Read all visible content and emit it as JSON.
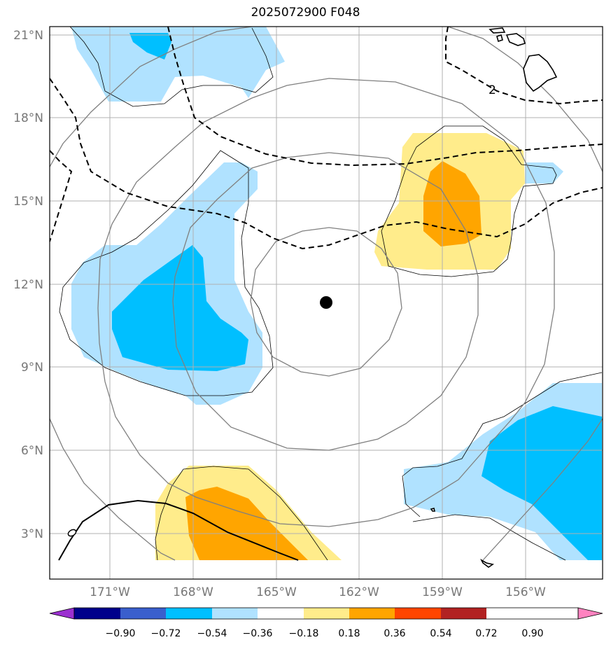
{
  "title": "2025072900 F048",
  "lat_labels": [
    "21°N",
    "18°N",
    "15°N",
    "12°N",
    "9°N",
    "6°N",
    "3°N"
  ],
  "lon_labels": [
    "171°W",
    "168°W",
    "165°W",
    "162°W",
    "159°W",
    "156°W"
  ],
  "contour_label": "2",
  "colorbar": {
    "ticks": [
      "−0.90",
      "−0.72",
      "−0.54",
      "−0.36",
      "−0.18",
      "0.18",
      "0.36",
      "0.54",
      "0.72",
      "0.90"
    ],
    "colors": [
      "#9b30d0",
      "#00008b",
      "#3a5fcd",
      "#00bfff",
      "#b0e2ff",
      "#ffffff",
      "#ffec8b",
      "#ffa500",
      "#ff4500",
      "#b22222",
      "#ff83c0"
    ]
  },
  "storm_center": {
    "lat": 11.3,
    "lon": -163.2
  }
}
